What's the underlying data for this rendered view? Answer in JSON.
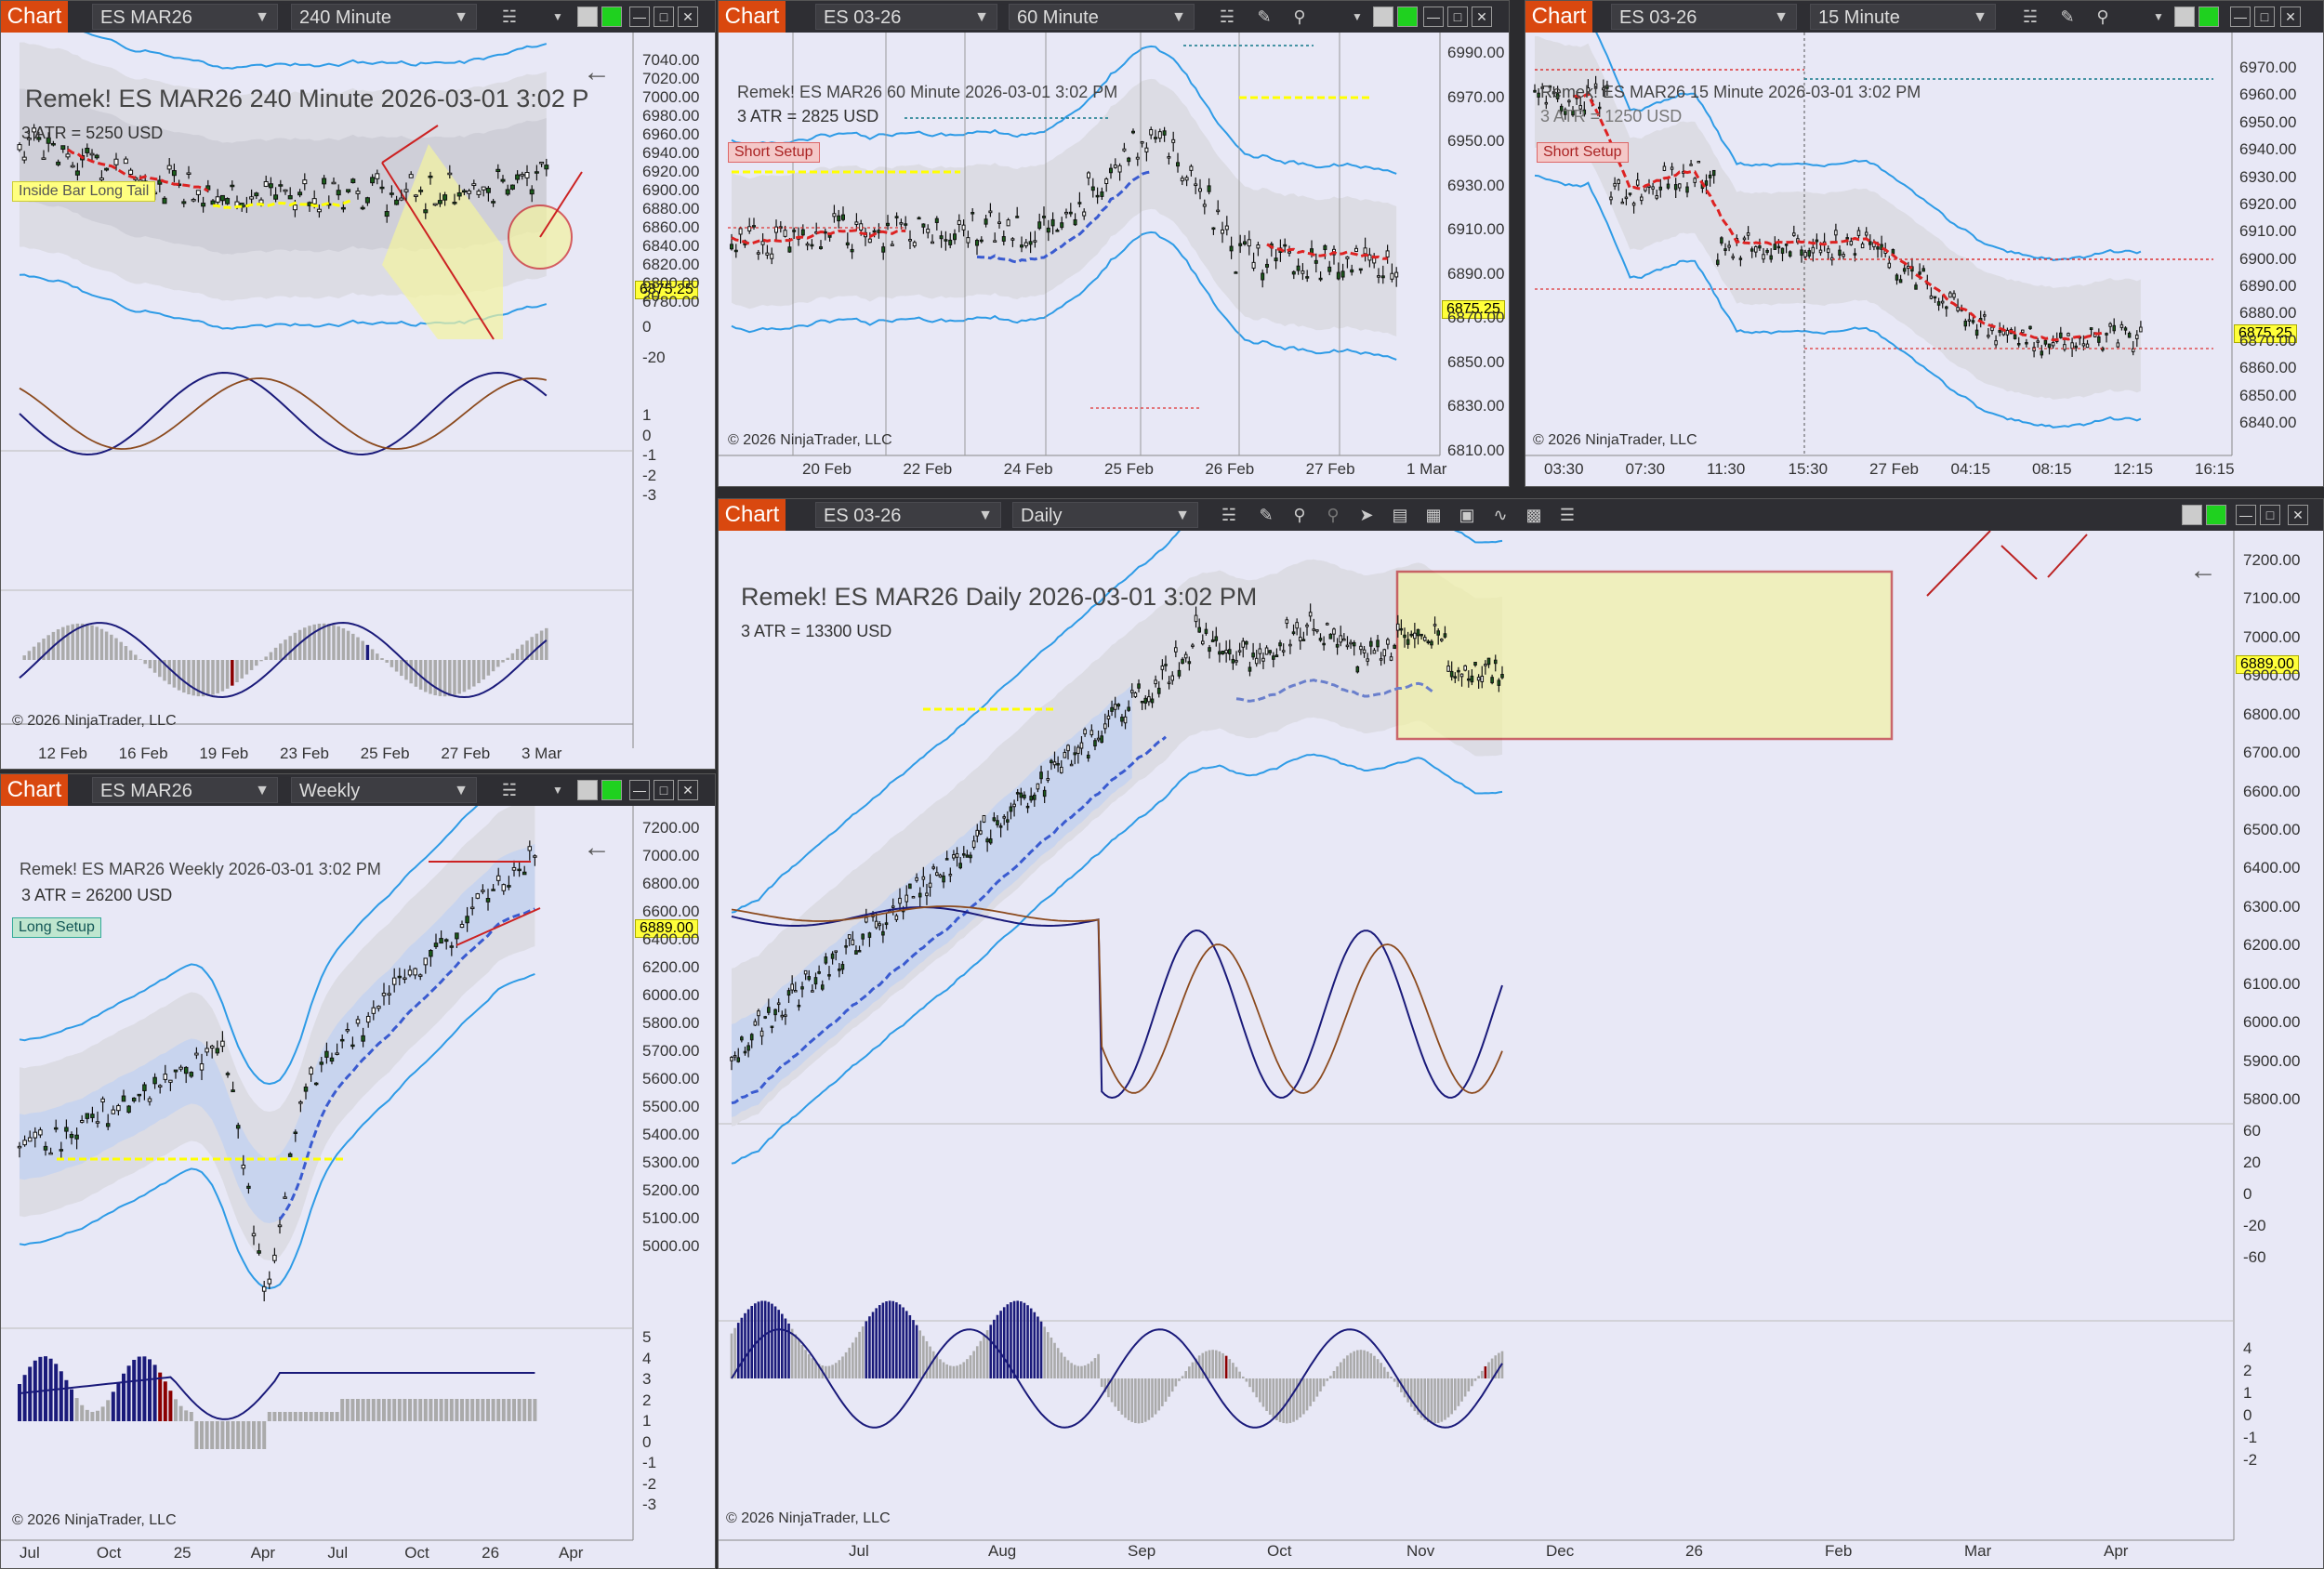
{
  "chart_label": "Chart",
  "windows": {
    "w240": {
      "instrument": "ES MAR26",
      "period": "240 Minute",
      "title": "Remek!  ES MAR26  240 Minute  2026-03-01 3:02 P",
      "atr": "3 ATR = 5250 USD",
      "setup": "Inside Bar Long Tail",
      "price": "6875.25",
      "copyright": "© 2026 NinjaTrader, LLC",
      "yticks": [
        "7040.00",
        "7020.00",
        "7000.00",
        "6980.00",
        "6960.00",
        "6940.00",
        "6920.00",
        "6900.00",
        "6880.00",
        "6860.00",
        "6840.00",
        "6820.00",
        "6800.00",
        "6780.00"
      ],
      "osc1_ticks": [
        "20",
        "0",
        "-20"
      ],
      "osc2_ticks": [
        "1",
        "0",
        "-1",
        "-2",
        "-3"
      ],
      "xticks": [
        "12 Feb",
        "16 Feb",
        "19 Feb",
        "23 Feb",
        "25 Feb",
        "27 Feb",
        "3 Mar"
      ]
    },
    "w60": {
      "instrument": "ES 03-26",
      "period": "60 Minute",
      "title": "Remek!  ES MAR26  60 Minute  2026-03-01 3:02 PM",
      "atr": "3 ATR = 2825 USD",
      "setup": "Short Setup",
      "price": "6875.25",
      "copyright": "© 2026 NinjaTrader, LLC",
      "yticks": [
        "6990.00",
        "6970.00",
        "6950.00",
        "6930.00",
        "6910.00",
        "6890.00",
        "6870.00",
        "6850.00",
        "6830.00",
        "6810.00"
      ],
      "xticks": [
        "20 Feb",
        "22 Feb",
        "24 Feb",
        "25 Feb",
        "26 Feb",
        "27 Feb",
        "1 Mar"
      ]
    },
    "w15": {
      "instrument": "ES 03-26",
      "period": "15 Minute",
      "title": "Remek!  ES MAR26  15 Minute  2026-03-01 3:02 PM",
      "atr": "3 ATR = 1250 USD",
      "setup": "Short Setup",
      "price": "6875.25",
      "copyright": "© 2026 NinjaTrader, LLC",
      "yticks": [
        "6970.00",
        "6960.00",
        "6950.00",
        "6940.00",
        "6930.00",
        "6920.00",
        "6910.00",
        "6900.00",
        "6890.00",
        "6880.00",
        "6870.00",
        "6860.00",
        "6850.00",
        "6840.00"
      ],
      "xticks": [
        "03:30",
        "07:30",
        "11:30",
        "15:30",
        "27 Feb",
        "04:15",
        "08:15",
        "12:15",
        "16:15"
      ]
    },
    "wW": {
      "instrument": "ES MAR26",
      "period": "Weekly",
      "title": "Remek!  ES MAR26  Weekly  2026-03-01 3:02 PM",
      "atr": "3 ATR = 26200 USD",
      "setup": "Long Setup",
      "price": "6889.00",
      "copyright": "© 2026 NinjaTrader, LLC",
      "yticks": [
        "7200.00",
        "7000.00",
        "6800.00",
        "6600.00",
        "6400.00",
        "6200.00",
        "6000.00",
        "5800.00",
        "5700.00",
        "5600.00",
        "5500.00",
        "5400.00",
        "5300.00",
        "5200.00",
        "5100.00",
        "5000.00"
      ],
      "osc2_ticks": [
        "5",
        "4",
        "3",
        "2",
        "1",
        "0",
        "-1",
        "-2",
        "-3"
      ],
      "xticks": [
        "Jul",
        "Oct",
        "25",
        "Apr",
        "Jul",
        "Oct",
        "26",
        "Apr"
      ]
    },
    "wD": {
      "instrument": "ES 03-26",
      "period": "Daily",
      "title": "Remek!  ES MAR26  Daily  2026-03-01 3:02 PM",
      "atr": "3 ATR = 13300 USD",
      "price": "6889.00",
      "copyright": "© 2026 NinjaTrader, LLC",
      "yticks": [
        "7200.00",
        "7100.00",
        "7000.00",
        "6900.00",
        "6800.00",
        "6700.00",
        "6600.00",
        "6500.00",
        "6400.00",
        "6300.00",
        "6200.00",
        "6100.00",
        "6000.00",
        "5900.00",
        "5800.00"
      ],
      "osc1_ticks": [
        "60",
        "20",
        "0",
        "-20",
        "-60"
      ],
      "osc2_ticks": [
        "4",
        "2",
        "1",
        "0",
        "-1",
        "-2"
      ],
      "xticks": [
        "Jul",
        "Aug",
        "Sep",
        "Oct",
        "Nov",
        "Dec",
        "26",
        "Feb",
        "Mar",
        "Apr"
      ]
    }
  },
  "icons": {
    "bar_type": "bar-chart-icon",
    "draw": "pencil-icon",
    "zoom": "zoom-icon",
    "pointer": "pointer-icon",
    "properties": "properties-icon"
  }
}
